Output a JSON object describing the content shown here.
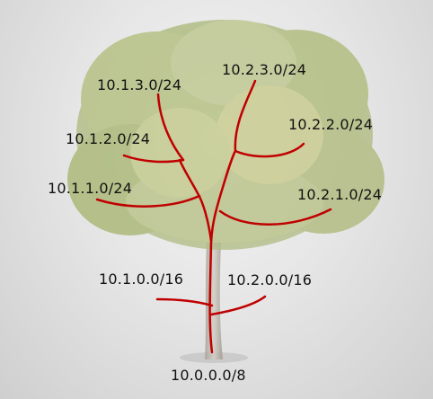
{
  "diagram": {
    "branch_color": "#c00000",
    "foliage_color": "#9fb06a",
    "trunk_color": "#b9b4aa",
    "labels": {
      "root": "10.0.0.0/8",
      "n_10_1_0_0": "10.1.0.0/16",
      "n_10_2_0_0": "10.2.0.0/16",
      "n_10_1_1_0": "10.1.1.0/24",
      "n_10_1_2_0": "10.1.2.0/24",
      "n_10_1_3_0": "10.1.3.0/24",
      "n_10_2_1_0": "10.2.1.0/24",
      "n_10_2_2_0": "10.2.2.0/24",
      "n_10_2_3_0": "10.2.3.0/24"
    }
  }
}
